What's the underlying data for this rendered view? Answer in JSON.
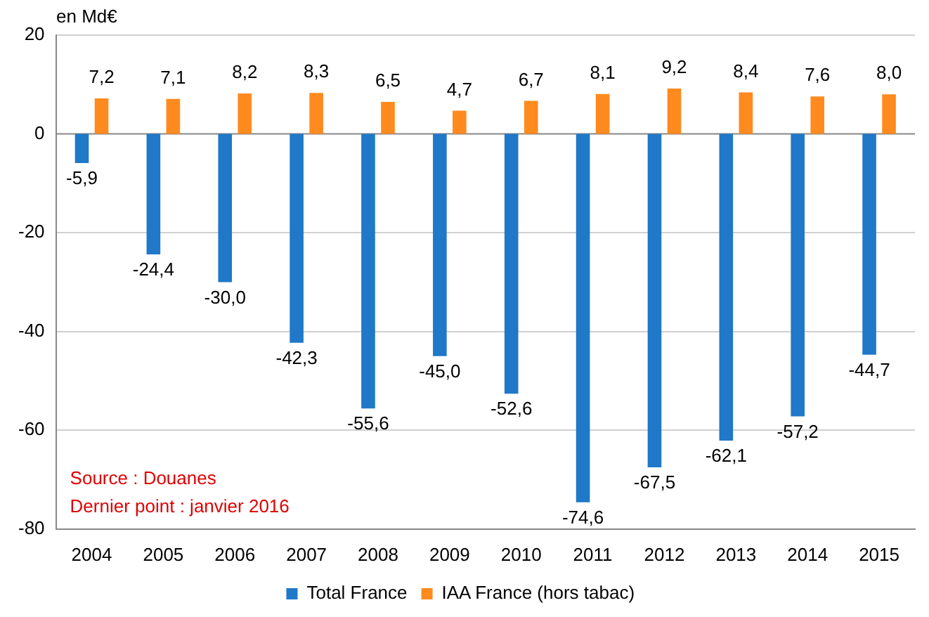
{
  "chart_data": {
    "type": "bar",
    "ylabel": "en Md€",
    "categories": [
      "2004",
      "2005",
      "2006",
      "2007",
      "2008",
      "2009",
      "2010",
      "2011",
      "2012",
      "2013",
      "2014",
      "2015"
    ],
    "series": [
      {
        "name": "Total France",
        "color": "#1f78c8",
        "values": [
          -5.9,
          -24.4,
          -30.0,
          -42.3,
          -55.6,
          -45.0,
          -52.6,
          -74.6,
          -67.5,
          -62.1,
          -57.2,
          -44.7
        ],
        "value_labels": [
          "-5,9",
          "-24,4",
          "-30,0",
          "-42,3",
          "-55,6",
          "-45,0",
          "-52,6",
          "-74,6",
          "-67,5",
          "-62,1",
          "-57,2",
          "-44,7"
        ]
      },
      {
        "name": "IAA France (hors tabac)",
        "color": "#ff8a1e",
        "values": [
          7.2,
          7.1,
          8.2,
          8.3,
          6.5,
          4.7,
          6.7,
          8.1,
          9.2,
          8.4,
          7.6,
          8.0
        ],
        "value_labels": [
          "7,2",
          "7,1",
          "8,2",
          "8,3",
          "6,5",
          "4,7",
          "6,7",
          "8,1",
          "9,2",
          "8,4",
          "7,6",
          "8,0"
        ]
      }
    ],
    "ylim": [
      -80,
      20
    ],
    "yticks": [
      -80,
      -60,
      -40,
      -20,
      0,
      20
    ],
    "grid": "y",
    "legend": "bottom",
    "annotations": [
      "Source : Douanes",
      "Dernier point : janvier 2016"
    ]
  }
}
